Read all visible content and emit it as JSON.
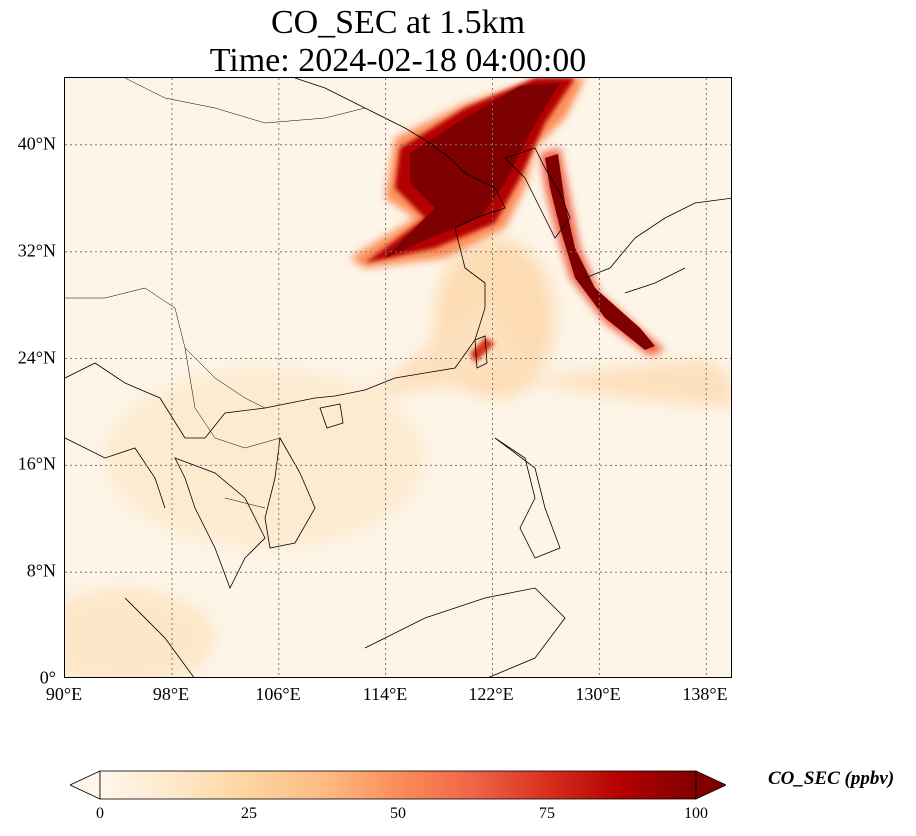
{
  "figure": {
    "title_line1": "CO_SEC at 1.5km",
    "title_line2": "Time: 2024-02-18 04:00:00"
  },
  "map": {
    "projection": "PlateCarree",
    "lon_range": [
      90,
      140
    ],
    "lat_range": [
      0,
      45
    ],
    "gridlines": "dotted",
    "lat_ticks": [
      {
        "value": 0,
        "label": "0°"
      },
      {
        "value": 8,
        "label": "8°N"
      },
      {
        "value": 16,
        "label": "16°N"
      },
      {
        "value": 24,
        "label": "24°N"
      },
      {
        "value": 32,
        "label": "32°N"
      },
      {
        "value": 40,
        "label": "40°N"
      }
    ],
    "lon_ticks": [
      {
        "value": 90,
        "label": "90°E"
      },
      {
        "value": 98,
        "label": "98°E"
      },
      {
        "value": 106,
        "label": "106°E"
      },
      {
        "value": 114,
        "label": "114°E"
      },
      {
        "value": 122,
        "label": "122°E"
      },
      {
        "value": 130,
        "label": "130°E"
      },
      {
        "value": 138,
        "label": "138°E"
      }
    ],
    "field_features": [
      {
        "name": "north-china-plume",
        "level": "high"
      },
      {
        "name": "korea-japan-plume",
        "level": "high"
      },
      {
        "name": "east-china-sea-outflow",
        "level": "moderate"
      }
    ]
  },
  "colorbar": {
    "colormap": "OrRd",
    "min": 0,
    "max": 100,
    "extend": "both",
    "label": "CO_SEC (ppbv)",
    "ticks": [
      {
        "value": 0,
        "label": "0"
      },
      {
        "value": 25,
        "label": "25"
      },
      {
        "value": 50,
        "label": "50"
      },
      {
        "value": 75,
        "label": "75"
      },
      {
        "value": 100,
        "label": "100"
      }
    ],
    "colors": [
      "#fff7ec",
      "#fee8c8",
      "#fdd49e",
      "#fdbb84",
      "#fc8d59",
      "#ef6548",
      "#d7301f",
      "#b30000",
      "#7f0000"
    ]
  }
}
